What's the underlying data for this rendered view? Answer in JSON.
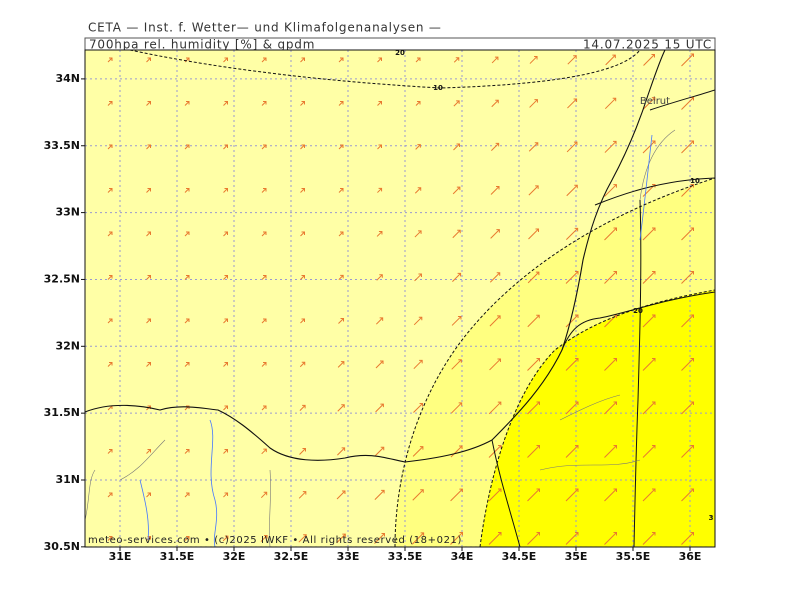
{
  "header": {
    "title": "CETA — Inst. f. Wetter— und Klimafolgenanalysen —",
    "subtitle": "700hpa rel. humidity [%] & gpdm",
    "timestamp": "14.07.2025 15 UTC"
  },
  "map": {
    "lon_ticks": [
      {
        "value": 31,
        "label": "31E"
      },
      {
        "value": 31.5,
        "label": "31.5E"
      },
      {
        "value": 32,
        "label": "32E"
      },
      {
        "value": 32.5,
        "label": "32.5E"
      },
      {
        "value": 33,
        "label": "33E"
      },
      {
        "value": 33.5,
        "label": "33.5E"
      },
      {
        "value": 34,
        "label": "34E"
      },
      {
        "value": 34.5,
        "label": "34.5E"
      },
      {
        "value": 35,
        "label": "35E"
      },
      {
        "value": 35.5,
        "label": "35.5E"
      },
      {
        "value": 36,
        "label": "36E"
      }
    ],
    "lat_ticks": [
      {
        "value": 30.5,
        "label": "30.5N"
      },
      {
        "value": 31,
        "label": "31N"
      },
      {
        "value": 31.5,
        "label": "31.5N"
      },
      {
        "value": 32,
        "label": "32N"
      },
      {
        "value": 32.5,
        "label": "32.5N"
      },
      {
        "value": 33,
        "label": "33N"
      },
      {
        "value": 33.5,
        "label": "33.5N"
      },
      {
        "value": 34,
        "label": "34N"
      }
    ],
    "contour_labels": [
      "20",
      "10",
      "10",
      "20",
      "3"
    ],
    "places": [
      "Beirut"
    ],
    "credit": "meteo-services.com • (c)2025 IWKF • All rights reserved (18+021)"
  }
}
